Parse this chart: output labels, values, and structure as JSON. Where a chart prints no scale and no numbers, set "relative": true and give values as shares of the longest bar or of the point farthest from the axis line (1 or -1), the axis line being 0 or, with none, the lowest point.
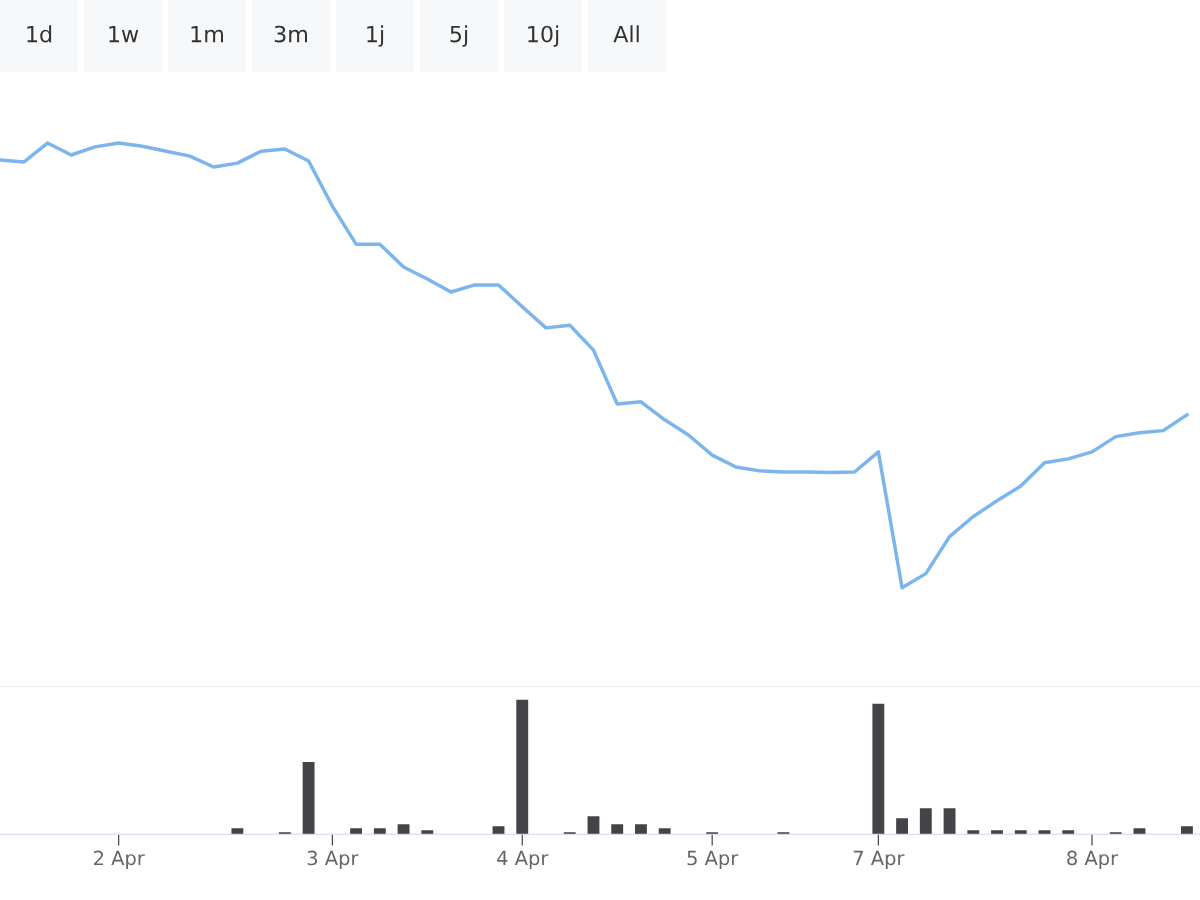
{
  "chart_data": [
    {
      "type": "line",
      "relative": true,
      "tick_labels": false,
      "annotations": [
        "1d",
        "1w",
        "1m",
        "3m",
        "1j",
        "5j",
        "10j",
        "All"
      ],
      "categories": [
        null,
        null,
        null,
        null,
        null,
        null,
        null,
        null,
        null,
        null,
        null,
        null,
        null,
        null,
        null,
        null,
        null,
        null,
        null,
        null,
        null,
        null,
        null,
        null,
        null,
        null,
        null,
        null,
        null,
        null,
        null,
        null,
        null,
        null,
        null,
        null,
        null,
        null,
        null,
        null,
        null,
        null,
        null,
        null,
        null,
        null,
        null,
        null,
        null,
        null,
        null
      ],
      "series": [
        {
          "color": "#7cb5ec",
          "values": [
            0.969,
            0.965,
            1,
            0.978,
            0.993,
            1,
            0.994,
            0.985,
            0.976,
            0.956,
            0.963,
            0.985,
            0.989,
            0.967,
            0.884,
            0.814,
            0.814,
            0.772,
            0.75,
            0.726,
            0.739,
            0.739,
            0.699,
            0.66,
            0.665,
            0.619,
            0.52,
            0.524,
            0.491,
            0.463,
            0.426,
            0.404,
            0.397,
            0.395,
            0.395,
            0.394,
            0.395,
            0.432,
            0.182,
            0.208,
            0.276,
            0.313,
            0.342,
            0.369,
            0.412,
            0.419,
            0.432,
            0.46,
            0.467,
            0.471,
            0.5
          ]
        }
      ]
    },
    {
      "type": "bar",
      "relative": true,
      "tick_labels": "x",
      "categories": [
        null,
        null,
        null,
        null,
        null,
        "2 Apr",
        null,
        null,
        null,
        null,
        null,
        null,
        null,
        null,
        "3 Apr",
        null,
        null,
        null,
        null,
        null,
        null,
        null,
        "4 Apr",
        null,
        null,
        null,
        null,
        null,
        null,
        null,
        "5 Apr",
        null,
        null,
        null,
        null,
        null,
        null,
        "7 Apr",
        null,
        null,
        null,
        null,
        null,
        null,
        null,
        null,
        "8 Apr",
        null,
        null,
        null,
        null
      ],
      "series": [
        {
          "color": "#434348",
          "values": [
            null,
            null,
            null,
            null,
            null,
            null,
            null,
            null,
            null,
            null,
            0.045,
            null,
            0.015,
            0.537,
            null,
            0.045,
            0.045,
            0.075,
            0.03,
            null,
            null,
            0.06,
            1,
            null,
            0.015,
            0.134,
            0.075,
            0.075,
            0.045,
            null,
            0.015,
            null,
            null,
            0.015,
            null,
            null,
            null,
            0.97,
            0.119,
            0.194,
            0.194,
            0.03,
            0.03,
            0.03,
            0.03,
            0.03,
            null,
            0.015,
            0.045,
            null,
            0.06
          ]
        }
      ]
    }
  ]
}
